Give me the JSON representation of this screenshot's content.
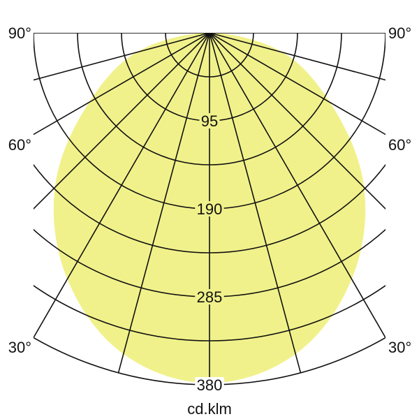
{
  "chart_data": {
    "type": "polar-area",
    "unit_label": "cd.klm",
    "radial_ticks": [
      95,
      190,
      285,
      380
    ],
    "radial_max": 380,
    "radial_minor_step": 47.5,
    "angle_step_deg": 15,
    "angle_labels": [
      {
        "deg": 90,
        "text": "90°"
      },
      {
        "deg": 60,
        "text": "60°"
      },
      {
        "deg": 30,
        "text": "30°"
      }
    ],
    "series": [
      {
        "angles_deg": [
          0,
          15,
          30,
          45,
          60,
          75,
          90
        ],
        "values": [
          378,
          359,
          307,
          236,
          150,
          82,
          0
        ],
        "symmetric": true,
        "fill": "#f1f18b"
      }
    ],
    "grid": true,
    "grid_color": "#111111"
  }
}
